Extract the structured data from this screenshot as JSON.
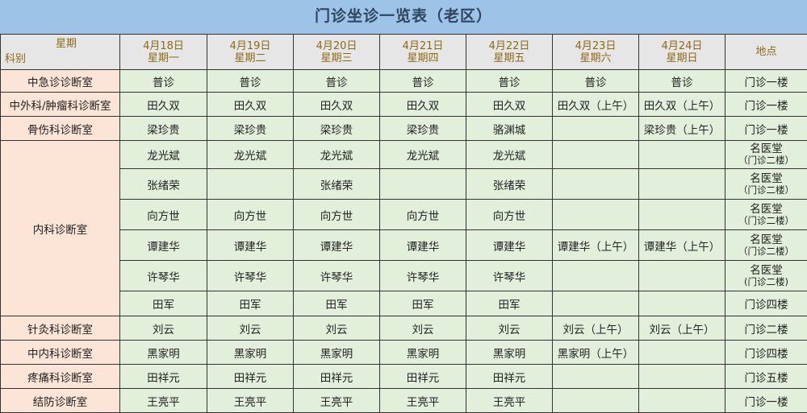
{
  "title": "门诊坐诊一览表（老区）",
  "header": {
    "corner_top": "星期",
    "corner_bottom": "科别",
    "days": [
      {
        "date": "4月18日",
        "weekday": "星期一"
      },
      {
        "date": "4月19日",
        "weekday": "星期二"
      },
      {
        "date": "4月20日",
        "weekday": "星期三"
      },
      {
        "date": "4月21日",
        "weekday": "星期四"
      },
      {
        "date": "4月22日",
        "weekday": "星期五"
      },
      {
        "date": "4月23日",
        "weekday": "星期六"
      },
      {
        "date": "4月24日",
        "weekday": "星期日"
      }
    ],
    "location": "地点"
  },
  "rows": [
    {
      "dept": "中急诊诊断室",
      "span": 1,
      "cells": [
        "普诊",
        "普诊",
        "普诊",
        "普诊",
        "普诊",
        "普诊",
        "普诊"
      ],
      "loc": "门诊一楼"
    },
    {
      "dept": "中外科/肿瘤科诊断室",
      "span": 1,
      "cells": [
        "田久双",
        "田久双",
        "田久双",
        "田久双",
        "田久双",
        "田久双（上午）",
        "田久双（上午）"
      ],
      "loc": "门诊一楼"
    },
    {
      "dept": "骨伤科诊断室",
      "span": 1,
      "cells": [
        "梁珍贵",
        "梁珍贵",
        "梁珍贵",
        "梁珍贵",
        "骆渊城",
        "",
        "梁珍贵（上午）"
      ],
      "loc": "门诊一楼"
    },
    {
      "dept": "内科诊断室",
      "span": 6,
      "cells": [
        "龙光斌",
        "龙光斌",
        "龙光斌",
        "龙光斌",
        "龙光斌",
        "",
        ""
      ],
      "loc": "名医堂",
      "loc_sub": "（门诊二楼）"
    },
    {
      "cells": [
        "张绪荣",
        "",
        "张绪荣",
        "",
        "张绪荣",
        "",
        ""
      ],
      "loc": "名医堂",
      "loc_sub": "（门诊二楼）"
    },
    {
      "cells": [
        "向方世",
        "向方世",
        "向方世",
        "向方世",
        "向方世",
        "",
        ""
      ],
      "loc": "名医堂",
      "loc_sub": "（门诊二楼）"
    },
    {
      "cells": [
        "谭建华",
        "谭建华",
        "谭建华",
        "谭建华",
        "谭建华",
        "谭建华（上午）",
        "谭建华（上午）"
      ],
      "loc": "名医堂",
      "loc_sub": "（门诊二楼）"
    },
    {
      "cells": [
        "许琴华",
        "许琴华",
        "许琴华",
        "许琴华",
        "许琴华",
        "",
        ""
      ],
      "loc": "名医堂",
      "loc_sub": "(门诊二楼)"
    },
    {
      "cells": [
        "田军",
        "田军",
        "田军",
        "田军",
        "田军",
        "",
        ""
      ],
      "loc": "门诊四楼"
    },
    {
      "dept": "针灸科诊断室",
      "span": 1,
      "cells": [
        "刘云",
        "刘云",
        "刘云",
        "刘云",
        "刘云",
        "刘云（上午）",
        "刘云（上午）"
      ],
      "loc": "门诊二楼"
    },
    {
      "dept": "中内科诊断室",
      "span": 1,
      "cells": [
        "黑家明",
        "黑家明",
        "黑家明",
        "黑家明",
        "黑家明",
        "黑家明（上午）",
        ""
      ],
      "loc": "门诊四楼"
    },
    {
      "dept": "疼痛科诊断室",
      "span": 1,
      "cells": [
        "田祥元",
        "田祥元",
        "田祥元",
        "田祥元",
        "田祥元",
        "",
        ""
      ],
      "loc": "门诊五楼"
    },
    {
      "dept": "结防诊断室",
      "span": 1,
      "cells": [
        "王亮平",
        "王亮平",
        "王亮平",
        "王亮平",
        "王亮平",
        "",
        ""
      ],
      "loc": "门诊一楼"
    }
  ],
  "colors": {
    "title_bg": "#9dc3e6",
    "header_bg": "#e7e6e6",
    "header_text": "#8c6b15",
    "dept_bg": "#fce4d6",
    "cell_bg": "#e2efda"
  }
}
